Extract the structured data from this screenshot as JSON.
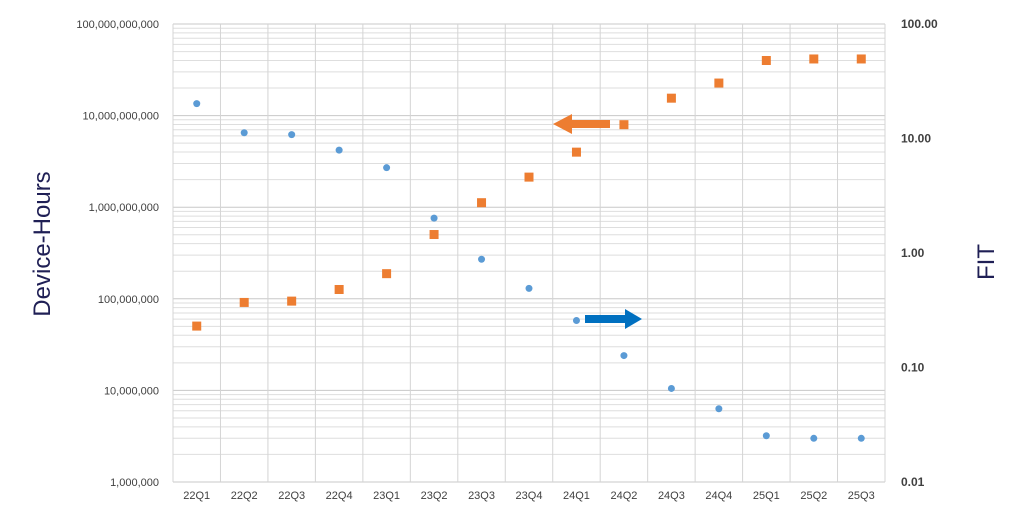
{
  "chart_data": {
    "type": "scatter",
    "categories": [
      "22Q1",
      "22Q2",
      "22Q3",
      "22Q4",
      "23Q1",
      "23Q2",
      "23Q3",
      "23Q4",
      "24Q1",
      "24Q2",
      "24Q3",
      "24Q4",
      "25Q1",
      "25Q2",
      "25Q3"
    ],
    "ylabel": "Device-Hours",
    "y2label": "FIT",
    "y_scale": "log",
    "y2_scale": "log",
    "ylim": [
      1000000,
      100000000000
    ],
    "y2lim": [
      0.01,
      100
    ],
    "y_ticks": [
      {
        "value": 1000000,
        "label": "1,000,000"
      },
      {
        "value": 10000000,
        "label": "10,000,000"
      },
      {
        "value": 100000000,
        "label": "100,000,000"
      },
      {
        "value": 1000000000,
        "label": "1,000,000,000"
      },
      {
        "value": 10000000000,
        "label": "10,000,000,000"
      },
      {
        "value": 100000000000,
        "label": "100,000,000,000"
      }
    ],
    "y2_ticks": [
      {
        "value": 0.01,
        "label": "0.01"
      },
      {
        "value": 0.1,
        "label": "0.10"
      },
      {
        "value": 1,
        "label": "1.00"
      },
      {
        "value": 10,
        "label": "10.00"
      },
      {
        "value": 100,
        "label": "100.00"
      }
    ],
    "grid": true,
    "legend": "none",
    "series": [
      {
        "axis": "left",
        "marker": "circle",
        "color": "#5b9bd5",
        "values": [
          13500000000,
          6500000000,
          6200000000,
          4200000000,
          2700000000,
          760000000,
          270000000,
          130000000,
          58000000,
          24000000,
          10500000,
          6300000,
          3200000,
          3000000,
          3000000
        ]
      },
      {
        "axis": "right",
        "marker": "square",
        "color": "#ed7d31",
        "values": [
          0.23,
          0.37,
          0.38,
          0.48,
          0.66,
          1.45,
          2.75,
          4.6,
          7.6,
          13.2,
          22.5,
          30.5,
          48.0,
          49.5,
          49.5
        ]
      }
    ],
    "annotations": [
      {
        "type": "arrow",
        "direction": "left",
        "color": "#ed7d31",
        "points_to": "right-axis"
      },
      {
        "type": "arrow",
        "direction": "right",
        "color": "#0070c0",
        "points_to": "left-axis"
      }
    ]
  }
}
